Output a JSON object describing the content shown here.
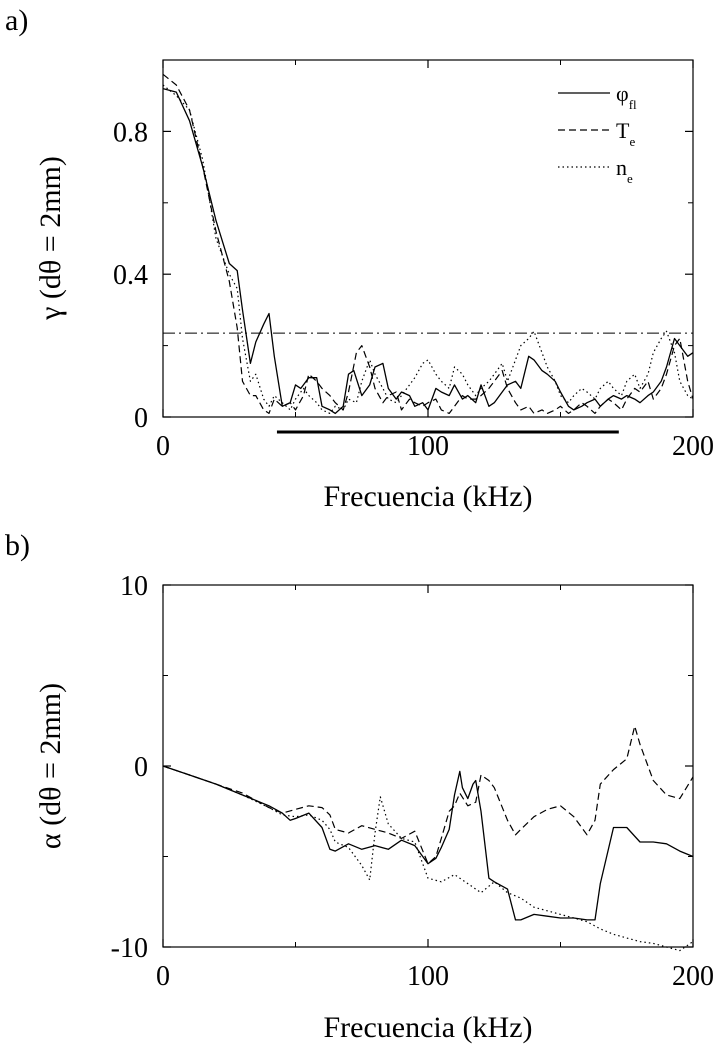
{
  "chart_data": [
    {
      "panel_label": "a)",
      "type": "line",
      "xlabel": "Frecuencia (kHz)",
      "ylabel": "γ (dθ = 2mm)",
      "xlim": [
        0,
        200
      ],
      "ylim": [
        0,
        1.0
      ],
      "xticks": [
        0,
        100,
        200
      ],
      "xtick_labels": [
        "0",
        "100",
        "200"
      ],
      "yticks": [
        0,
        0.4,
        0.8
      ],
      "ytick_labels": [
        "0",
        "0.4",
        "0.8"
      ],
      "grid": false,
      "legend_position": "top-right",
      "reference_line": {
        "y": 0.235,
        "style": "dash-dot"
      },
      "range_bar": {
        "x_start": 43,
        "x_end": 172
      },
      "series": [
        {
          "name": "φfl",
          "legend_main": "φ",
          "legend_sub": "fl",
          "style": "solid",
          "x": [
            0,
            5,
            10,
            15,
            20,
            25,
            28,
            30,
            33,
            35,
            38,
            40,
            42,
            45,
            48,
            50,
            52,
            55,
            58,
            60,
            63,
            65,
            68,
            70,
            72,
            75,
            78,
            80,
            83,
            85,
            88,
            90,
            93,
            95,
            98,
            100,
            103,
            105,
            108,
            110,
            113,
            115,
            118,
            120,
            123,
            125,
            128,
            130,
            133,
            135,
            138,
            140,
            143,
            145,
            148,
            150,
            153,
            155,
            158,
            160,
            163,
            165,
            168,
            170,
            173,
            175,
            178,
            180,
            183,
            185,
            188,
            190,
            193,
            195,
            198,
            200
          ],
          "y": [
            0.92,
            0.91,
            0.83,
            0.7,
            0.55,
            0.43,
            0.41,
            0.3,
            0.15,
            0.21,
            0.26,
            0.29,
            0.17,
            0.03,
            0.04,
            0.09,
            0.08,
            0.11,
            0.11,
            0.03,
            0.02,
            0.01,
            0.03,
            0.12,
            0.13,
            0.06,
            0.09,
            0.14,
            0.15,
            0.08,
            0.05,
            0.07,
            0.06,
            0.03,
            0.04,
            0.02,
            0.08,
            0.07,
            0.06,
            0.09,
            0.05,
            0.06,
            0.04,
            0.09,
            0.03,
            0.04,
            0.07,
            0.09,
            0.1,
            0.08,
            0.17,
            0.16,
            0.13,
            0.12,
            0.1,
            0.07,
            0.03,
            0.02,
            0.03,
            0.04,
            0.05,
            0.03,
            0.05,
            0.06,
            0.05,
            0.06,
            0.05,
            0.04,
            0.06,
            0.07,
            0.1,
            0.14,
            0.22,
            0.2,
            0.17,
            0.18
          ]
        },
        {
          "name": "Te",
          "legend_main": "T",
          "legend_sub": "e",
          "style": "dashed",
          "x": [
            0,
            5,
            10,
            15,
            20,
            25,
            28,
            30,
            33,
            35,
            38,
            40,
            42,
            45,
            48,
            50,
            53,
            55,
            58,
            60,
            63,
            65,
            68,
            70,
            73,
            75,
            78,
            80,
            83,
            85,
            88,
            90,
            93,
            95,
            98,
            100,
            103,
            105,
            108,
            110,
            113,
            115,
            118,
            120,
            123,
            125,
            128,
            130,
            133,
            135,
            138,
            140,
            143,
            145,
            148,
            150,
            153,
            155,
            158,
            160,
            163,
            165,
            168,
            170,
            173,
            175,
            178,
            180,
            183,
            185,
            188,
            190,
            193,
            195,
            198,
            200
          ],
          "y": [
            0.96,
            0.93,
            0.86,
            0.7,
            0.52,
            0.38,
            0.25,
            0.1,
            0.06,
            0.06,
            0.02,
            0.01,
            0.05,
            0.03,
            0.04,
            0.02,
            0.06,
            0.12,
            0.1,
            0.08,
            0.06,
            0.04,
            0.02,
            0.07,
            0.18,
            0.2,
            0.14,
            0.08,
            0.04,
            0.06,
            0.07,
            0.02,
            0.05,
            0.04,
            0.03,
            0.04,
            0.05,
            0.02,
            0.01,
            0.03,
            0.06,
            0.05,
            0.05,
            0.06,
            0.08,
            0.1,
            0.13,
            0.08,
            0.04,
            0.02,
            0.03,
            0.01,
            0.02,
            0.01,
            0.02,
            0.03,
            0.01,
            0.02,
            0.04,
            0.03,
            0.01,
            0.03,
            0.05,
            0.04,
            0.02,
            0.05,
            0.08,
            0.07,
            0.1,
            0.05,
            0.08,
            0.12,
            0.2,
            0.22,
            0.1,
            0.05
          ]
        },
        {
          "name": "ne",
          "legend_main": "n",
          "legend_sub": "e",
          "style": "dotted",
          "x": [
            0,
            5,
            10,
            15,
            20,
            25,
            28,
            30,
            33,
            35,
            38,
            40,
            42,
            45,
            48,
            50,
            53,
            55,
            58,
            60,
            63,
            65,
            68,
            70,
            73,
            75,
            78,
            80,
            83,
            85,
            88,
            90,
            93,
            95,
            98,
            100,
            103,
            105,
            108,
            110,
            113,
            115,
            118,
            120,
            123,
            125,
            128,
            130,
            133,
            135,
            138,
            140,
            143,
            145,
            148,
            150,
            153,
            155,
            158,
            160,
            163,
            165,
            168,
            170,
            173,
            175,
            178,
            180,
            183,
            185,
            188,
            190,
            193,
            195,
            198,
            200
          ],
          "y": [
            0.93,
            0.9,
            0.86,
            0.72,
            0.5,
            0.4,
            0.36,
            0.22,
            0.1,
            0.12,
            0.05,
            0.03,
            0.06,
            0.04,
            0.02,
            0.05,
            0.08,
            0.06,
            0.04,
            0.02,
            0.01,
            0.03,
            0.02,
            0.05,
            0.04,
            0.1,
            0.16,
            0.12,
            0.08,
            0.05,
            0.04,
            0.06,
            0.09,
            0.11,
            0.15,
            0.16,
            0.12,
            0.1,
            0.08,
            0.14,
            0.12,
            0.09,
            0.06,
            0.08,
            0.1,
            0.12,
            0.15,
            0.1,
            0.16,
            0.2,
            0.22,
            0.24,
            0.18,
            0.14,
            0.1,
            0.06,
            0.04,
            0.06,
            0.08,
            0.07,
            0.05,
            0.08,
            0.1,
            0.08,
            0.06,
            0.1,
            0.12,
            0.08,
            0.12,
            0.18,
            0.22,
            0.24,
            0.18,
            0.1,
            0.06,
            0.05
          ]
        }
      ]
    },
    {
      "panel_label": "b)",
      "type": "line",
      "xlabel": "Frecuencia (kHz)",
      "ylabel": "α (dθ = 2mm)",
      "xlim": [
        0,
        200
      ],
      "ylim": [
        -10,
        10
      ],
      "xticks": [
        0,
        100,
        200
      ],
      "xtick_labels": [
        "0",
        "100",
        "200"
      ],
      "yticks": [
        -10,
        0,
        10
      ],
      "ytick_labels": [
        "-10",
        "0",
        "10"
      ],
      "grid": false,
      "series": [
        {
          "name": "φfl",
          "style": "solid",
          "x": [
            0,
            10,
            20,
            30,
            40,
            45,
            48,
            50,
            55,
            60,
            63,
            65,
            70,
            75,
            80,
            85,
            90,
            95,
            100,
            103,
            105,
            108,
            110,
            112,
            113,
            115,
            117,
            118,
            120,
            123,
            125,
            130,
            133,
            135,
            140,
            145,
            150,
            155,
            160,
            163,
            165,
            170,
            175,
            180,
            185,
            190,
            195,
            200
          ],
          "y": [
            0,
            -0.5,
            -1,
            -1.6,
            -2.2,
            -2.6,
            -3,
            -2.9,
            -2.6,
            -3.4,
            -4.6,
            -4.7,
            -4.3,
            -4.6,
            -4.4,
            -4.6,
            -4.1,
            -4.4,
            -5.4,
            -5.1,
            -4.5,
            -3.5,
            -1.6,
            -0.3,
            -1.2,
            -1.8,
            -1,
            -0.8,
            -2.5,
            -6.2,
            -6.4,
            -6.8,
            -8.5,
            -8.5,
            -8.2,
            -8.3,
            -8.4,
            -8.4,
            -8.5,
            -8.5,
            -6.5,
            -3.4,
            -3.4,
            -4.2,
            -4.2,
            -4.3,
            -4.7,
            -5
          ]
        },
        {
          "name": "Te",
          "style": "dashed",
          "x": [
            0,
            10,
            20,
            30,
            40,
            45,
            50,
            55,
            60,
            63,
            65,
            70,
            75,
            80,
            85,
            90,
            95,
            100,
            103,
            105,
            108,
            110,
            112,
            115,
            118,
            120,
            123,
            125,
            130,
            133,
            135,
            140,
            145,
            150,
            155,
            160,
            163,
            165,
            170,
            175,
            178,
            180,
            185,
            190,
            195,
            200
          ],
          "y": [
            0,
            -0.5,
            -1,
            -1.5,
            -2.3,
            -2.6,
            -2.4,
            -2.2,
            -2.3,
            -2.7,
            -3.5,
            -3.7,
            -3.3,
            -3.5,
            -3.7,
            -4,
            -3.6,
            -5.4,
            -5,
            -4,
            -2.5,
            -2.2,
            -1.5,
            -2.2,
            -2,
            -0.5,
            -0.8,
            -1.2,
            -3,
            -3.8,
            -3.5,
            -2.8,
            -2.4,
            -2.2,
            -2.8,
            -3.8,
            -3,
            -1,
            -0.2,
            0.4,
            2.2,
            1.2,
            -0.8,
            -1.6,
            -1.8,
            -0.6
          ]
        },
        {
          "name": "ne",
          "style": "dotted",
          "x": [
            0,
            10,
            20,
            30,
            40,
            45,
            50,
            55,
            60,
            63,
            65,
            70,
            75,
            78,
            80,
            82,
            85,
            90,
            95,
            100,
            105,
            110,
            115,
            120,
            125,
            130,
            135,
            140,
            145,
            150,
            155,
            160,
            165,
            170,
            175,
            180,
            185,
            190,
            195,
            200
          ],
          "y": [
            0,
            -0.5,
            -1,
            -1.6,
            -2.3,
            -2.7,
            -2.8,
            -2.7,
            -3,
            -3.5,
            -4.2,
            -4.5,
            -5.5,
            -6.3,
            -3.7,
            -1.7,
            -3.2,
            -4,
            -4.2,
            -6.2,
            -6.4,
            -6,
            -6.5,
            -7,
            -6.4,
            -7,
            -7.3,
            -7.8,
            -8,
            -8.2,
            -8.4,
            -8.6,
            -9,
            -9.3,
            -9.5,
            -9.7,
            -9.8,
            -10,
            -10.2,
            -9.7
          ]
        }
      ]
    }
  ]
}
